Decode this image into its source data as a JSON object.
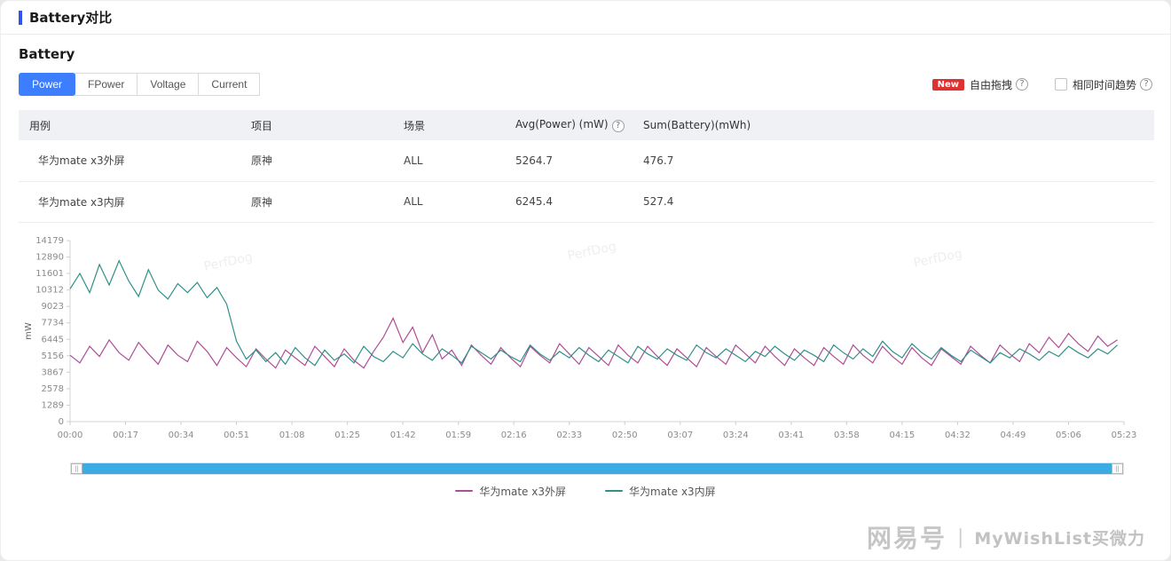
{
  "page": {
    "title": "Battery对比"
  },
  "section": {
    "title": "Battery"
  },
  "tabs": [
    {
      "label": "Power",
      "active": true
    },
    {
      "label": "FPower",
      "active": false
    },
    {
      "label": "Voltage",
      "active": false
    },
    {
      "label": "Current",
      "active": false
    }
  ],
  "controls": {
    "new_badge": "New",
    "free_drag_label": "自由拖拽",
    "sync_time_label": "相同时间趋势",
    "help_icon": "?",
    "slider_handle_icon": "||"
  },
  "table": {
    "headers": [
      "用例",
      "项目",
      "场景",
      "Avg(Power) (mW)",
      "Sum(Battery)(mWh)"
    ],
    "rows": [
      [
        "华为mate x3外屏",
        "原神",
        "ALL",
        "5264.7",
        "476.7"
      ],
      [
        "华为mate x3内屏",
        "原神",
        "ALL",
        "6245.4",
        "527.4"
      ]
    ]
  },
  "chart_data": {
    "type": "line",
    "title": "",
    "xlabel": "",
    "ylabel": "mW",
    "ylim": [
      0,
      14179
    ],
    "y_ticks": [
      0,
      1289,
      2578,
      3867,
      5156,
      6445,
      7734,
      9023,
      10312,
      11601,
      12890,
      14179
    ],
    "x_tick_labels": [
      "00:00",
      "00:17",
      "00:34",
      "00:51",
      "01:08",
      "01:25",
      "01:42",
      "01:59",
      "02:16",
      "02:33",
      "02:50",
      "03:07",
      "03:24",
      "03:41",
      "03:58",
      "04:15",
      "04:32",
      "04:49",
      "05:06",
      "05:23"
    ],
    "x_total_minutes": 323,
    "x_start_min": 0,
    "x_step_min": 3,
    "grid": false,
    "legend_position": "bottom",
    "watermark": "PerfDog",
    "series": [
      {
        "name": "华为mate x3外屏",
        "color": "#ae4e97",
        "values": [
          5200,
          4600,
          5900,
          5100,
          6400,
          5400,
          4800,
          6200,
          5300,
          4500,
          6000,
          5200,
          4700,
          6300,
          5500,
          4400,
          5800,
          5000,
          4300,
          5700,
          4900,
          4200,
          5600,
          5000,
          4400,
          5900,
          5100,
          4300,
          5700,
          4800,
          4200,
          5500,
          6600,
          8100,
          6200,
          7400,
          5400,
          6800,
          4900,
          5600,
          4400,
          6000,
          5200,
          4500,
          5800,
          5000,
          4300,
          5900,
          5200,
          4600,
          6100,
          5300,
          4500,
          5800,
          5100,
          4400,
          6000,
          5200,
          4600,
          5900,
          5100,
          4400,
          5700,
          5000,
          4300,
          5800,
          5100,
          4500,
          6000,
          5300,
          4600,
          5900,
          5100,
          4400,
          5700,
          5000,
          4400,
          5800,
          5100,
          4500,
          6000,
          5200,
          4600,
          5900,
          5100,
          4500,
          5800,
          5000,
          4400,
          5700,
          5100,
          4500,
          5900,
          5200,
          4600,
          6000,
          5300,
          4700,
          6100,
          5400,
          6600,
          5800,
          6900,
          6100,
          5500,
          6700,
          5900,
          6400
        ]
      },
      {
        "name": "华为mate x3内屏",
        "color": "#2f9188",
        "values": [
          10400,
          11600,
          10100,
          12300,
          10700,
          12600,
          11000,
          9800,
          11900,
          10300,
          9600,
          10800,
          10100,
          10900,
          9700,
          10500,
          9200,
          6300,
          4900,
          5600,
          4700,
          5400,
          4500,
          5800,
          5000,
          4400,
          5600,
          4800,
          5300,
          4600,
          5900,
          5100,
          4700,
          5500,
          5000,
          6100,
          5300,
          4800,
          5700,
          5200,
          4600,
          5900,
          5400,
          4900,
          5600,
          5100,
          4700,
          6000,
          5300,
          4800,
          5500,
          5000,
          5800,
          5200,
          4700,
          5600,
          5100,
          4600,
          5900,
          5300,
          4900,
          5700,
          5200,
          4800,
          6000,
          5400,
          5000,
          5700,
          5200,
          4700,
          5500,
          5100,
          5900,
          5300,
          4800,
          5600,
          5200,
          4700,
          6000,
          5400,
          4900,
          5700,
          5100,
          6300,
          5500,
          5000,
          6100,
          5400,
          4900,
          5800,
          5200,
          4700,
          5600,
          5100,
          4600,
          5400,
          5000,
          5700,
          5300,
          4800,
          5500,
          5100,
          5900,
          5400,
          5000,
          5700,
          5300,
          6000
        ]
      }
    ]
  },
  "watermark": {
    "brand": "网易号",
    "divider": "|",
    "text": "MyWishList买微力"
  }
}
